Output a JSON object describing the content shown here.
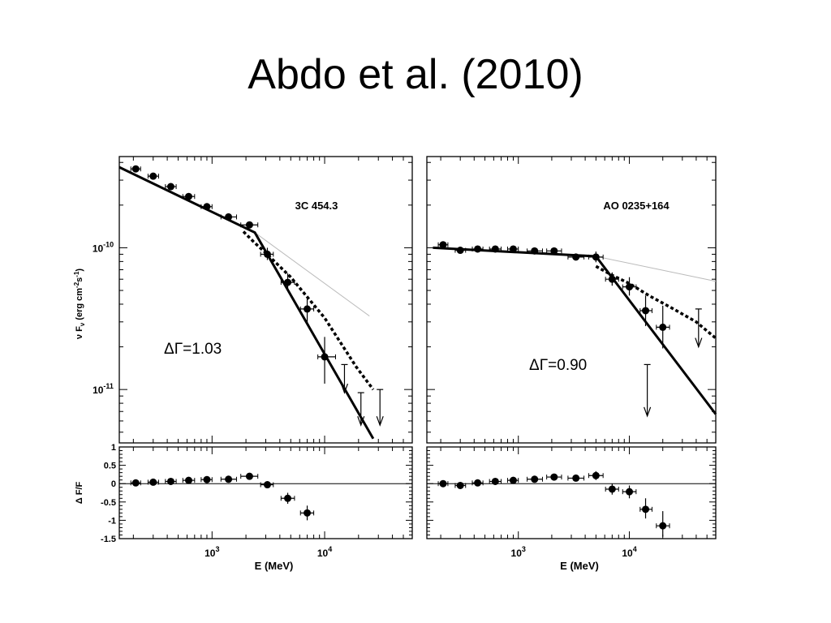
{
  "slide": {
    "title": "Abdo et al. (2010)"
  },
  "colors": {
    "data": "#000000",
    "reference_line": "#bbbbbb"
  },
  "chart_data": [
    {
      "type": "scatter",
      "panel": "upper-left",
      "annotation": "3C 454.3",
      "delta_label": "ΔΓ=1.03",
      "ylabel_parts": [
        "ν F",
        "ν",
        " (erg cm",
        "-2",
        "s",
        "-1",
        ")"
      ],
      "x_scale": "log",
      "y_scale": "log",
      "xlim": [
        150,
        60000
      ],
      "ylim": [
        4.2e-12,
        4.4e-10
      ],
      "y_ticks": [
        {
          "value": 1e-10,
          "base": "10",
          "exp": "-10"
        },
        {
          "value": 1e-11,
          "base": "10",
          "exp": "-11"
        }
      ],
      "points": [
        {
          "x": 210,
          "y": 3.6e-10,
          "xlo": 190,
          "xhi": 232
        },
        {
          "x": 300,
          "y": 3.2e-10,
          "xlo": 270,
          "xhi": 335
        },
        {
          "x": 430,
          "y": 2.7e-10,
          "xlo": 385,
          "xhi": 480
        },
        {
          "x": 620,
          "y": 2.3e-10,
          "xlo": 550,
          "xhi": 700
        },
        {
          "x": 900,
          "y": 1.95e-10,
          "xlo": 800,
          "xhi": 1000
        },
        {
          "x": 1400,
          "y": 1.65e-10,
          "xlo": 1200,
          "xhi": 1650
        },
        {
          "x": 2150,
          "y": 1.45e-10,
          "xlo": 1800,
          "xhi": 2550
        },
        {
          "x": 3100,
          "y": 9e-11,
          "xlo": 2700,
          "xhi": 3500,
          "ylo": 8.2e-11,
          "yhi": 1e-10
        },
        {
          "x": 4700,
          "y": 5.7e-11,
          "xlo": 4100,
          "xhi": 5400,
          "ylo": 5e-11,
          "yhi": 6.6e-11
        },
        {
          "x": 7000,
          "y": 3.7e-11,
          "xlo": 6100,
          "xhi": 8000,
          "ylo": 2.9e-11,
          "yhi": 4.5e-11
        },
        {
          "x": 10000,
          "y": 1.7e-11,
          "xlo": 8700,
          "xhi": 12500,
          "ylo": 1.1e-11,
          "yhi": 2.35e-11
        }
      ],
      "upper_limits": [
        {
          "x": 15000,
          "y": 1.5e-11,
          "to": 9.5e-12
        },
        {
          "x": 21000,
          "y": 9.5e-12,
          "to": 5.6e-12
        },
        {
          "x": 31000,
          "y": 1e-11,
          "to": 5.6e-12
        }
      ],
      "broken_power_law": [
        [
          150,
          3.7e-10
        ],
        [
          2400,
          1.28e-10
        ],
        [
          27000,
          4.5e-12
        ]
      ],
      "curved_model": [
        [
          1900,
          1.3e-10
        ],
        [
          2400,
          1.08e-10
        ],
        [
          3000,
          9.2e-11
        ],
        [
          5000,
          6.2e-11
        ],
        [
          10000,
          3.2e-11
        ],
        [
          19000,
          1.45e-11
        ],
        [
          27000,
          1e-11
        ]
      ],
      "reference_power_law": [
        [
          2400,
          1.28e-10
        ],
        [
          25000,
          3.3e-11
        ]
      ],
      "residuals": {
        "ylabel": "Δ F/F",
        "ylim": [
          -1.5,
          1
        ],
        "y_ticks": [
          {
            "value": 1,
            "label": "1"
          },
          {
            "value": 0.5,
            "label": "0.5"
          },
          {
            "value": 0,
            "label": "0"
          },
          {
            "value": -0.5,
            "label": "-0.5"
          },
          {
            "value": -1,
            "label": "-1"
          },
          {
            "value": -1.5,
            "label": "-1.5"
          }
        ],
        "points": [
          {
            "x": 210,
            "y": 0.02,
            "xlo": 190,
            "xhi": 232
          },
          {
            "x": 300,
            "y": 0.04,
            "xlo": 270,
            "xhi": 335
          },
          {
            "x": 430,
            "y": 0.06,
            "xlo": 385,
            "xhi": 480
          },
          {
            "x": 620,
            "y": 0.09,
            "xlo": 550,
            "xhi": 700
          },
          {
            "x": 900,
            "y": 0.11,
            "xlo": 800,
            "xhi": 1000
          },
          {
            "x": 1400,
            "y": 0.12,
            "xlo": 1200,
            "xhi": 1650
          },
          {
            "x": 2150,
            "y": 0.2,
            "xlo": 1800,
            "xhi": 2550,
            "ylo": 0.12,
            "yhi": 0.28
          },
          {
            "x": 3100,
            "y": -0.03,
            "xlo": 2700,
            "xhi": 3500
          },
          {
            "x": 4700,
            "y": -0.4,
            "xlo": 4100,
            "xhi": 5400,
            "ylo": -0.55,
            "yhi": -0.25
          },
          {
            "x": 7000,
            "y": -0.8,
            "xlo": 6100,
            "xhi": 8000,
            "ylo": -1.0,
            "yhi": -0.6
          }
        ]
      },
      "xlabel": "E (MeV)",
      "x_ticks": [
        {
          "value": 1000,
          "base": "10",
          "exp": "3"
        },
        {
          "value": 10000,
          "base": "10",
          "exp": "4"
        }
      ]
    },
    {
      "type": "scatter",
      "panel": "upper-right",
      "annotation": "AO 0235+164",
      "delta_label": "ΔΓ=0.90",
      "x_scale": "log",
      "y_scale": "log",
      "xlim": [
        150,
        60000
      ],
      "ylim": [
        4.2e-12,
        4.4e-10
      ],
      "points": [
        {
          "x": 210,
          "y": 1.05e-10,
          "xlo": 190,
          "xhi": 232
        },
        {
          "x": 300,
          "y": 9.6e-11,
          "xlo": 270,
          "xhi": 335
        },
        {
          "x": 430,
          "y": 9.8e-11,
          "xlo": 385,
          "xhi": 480
        },
        {
          "x": 620,
          "y": 9.8e-11,
          "xlo": 550,
          "xhi": 700
        },
        {
          "x": 900,
          "y": 9.8e-11,
          "xlo": 800,
          "xhi": 1000
        },
        {
          "x": 1400,
          "y": 9.5e-11,
          "xlo": 1200,
          "xhi": 1650
        },
        {
          "x": 2100,
          "y": 9.5e-11,
          "xlo": 1800,
          "xhi": 2450
        },
        {
          "x": 3300,
          "y": 8.6e-11,
          "xlo": 2800,
          "xhi": 3900
        },
        {
          "x": 5000,
          "y": 8.6e-11,
          "xlo": 4300,
          "xhi": 5800,
          "ylo": 7.9e-11,
          "yhi": 9.4e-11
        },
        {
          "x": 7000,
          "y": 6e-11,
          "xlo": 6100,
          "xhi": 8000,
          "ylo": 5.4e-11,
          "yhi": 6.7e-11
        },
        {
          "x": 10000,
          "y": 5.3e-11,
          "xlo": 8700,
          "xhi": 11500,
          "ylo": 4.6e-11,
          "yhi": 6.2e-11
        },
        {
          "x": 14000,
          "y": 3.6e-11,
          "xlo": 12500,
          "xhi": 16000,
          "ylo": 2.8e-11,
          "yhi": 4.6e-11
        },
        {
          "x": 20000,
          "y": 2.75e-11,
          "xlo": 17500,
          "xhi": 23000,
          "ylo": 1.95e-11,
          "yhi": 3.9e-11
        }
      ],
      "upper_limits": [
        {
          "x": 14500,
          "y": 1.5e-11,
          "to": 6.5e-12
        },
        {
          "x": 42000,
          "y": 3.7e-11,
          "to": 2e-11
        }
      ],
      "broken_power_law": [
        [
          170,
          1e-10
        ],
        [
          5000,
          8.7e-11
        ],
        [
          60000,
          6.7e-12
        ]
      ],
      "curved_model": [
        [
          5000,
          7.4e-11
        ],
        [
          7000,
          6.4e-11
        ],
        [
          10000,
          5.6e-11
        ],
        [
          15000,
          4.6e-11
        ],
        [
          25000,
          3.7e-11
        ],
        [
          40000,
          3e-11
        ],
        [
          60000,
          2.3e-11
        ]
      ],
      "reference_power_law": [
        [
          5000,
          8.7e-11
        ],
        [
          60000,
          5.8e-11
        ]
      ],
      "residuals": {
        "ylim": [
          -1.5,
          1
        ],
        "points": [
          {
            "x": 210,
            "y": 0.0,
            "xlo": 190,
            "xhi": 232
          },
          {
            "x": 300,
            "y": -0.05,
            "xlo": 270,
            "xhi": 335
          },
          {
            "x": 430,
            "y": 0.02,
            "xlo": 385,
            "xhi": 480
          },
          {
            "x": 620,
            "y": 0.06,
            "xlo": 550,
            "xhi": 700
          },
          {
            "x": 900,
            "y": 0.09,
            "xlo": 800,
            "xhi": 1000
          },
          {
            "x": 1400,
            "y": 0.12,
            "xlo": 1200,
            "xhi": 1650
          },
          {
            "x": 2100,
            "y": 0.18,
            "xlo": 1800,
            "xhi": 2450
          },
          {
            "x": 3300,
            "y": 0.15,
            "xlo": 2800,
            "xhi": 3900
          },
          {
            "x": 5000,
            "y": 0.22,
            "xlo": 4300,
            "xhi": 5800,
            "ylo": 0.1,
            "yhi": 0.34
          },
          {
            "x": 7000,
            "y": -0.15,
            "xlo": 6100,
            "xhi": 8000,
            "ylo": -0.3,
            "yhi": 0.0
          },
          {
            "x": 10000,
            "y": -0.22,
            "xlo": 8700,
            "xhi": 11500,
            "ylo": -0.4,
            "yhi": -0.05
          },
          {
            "x": 14000,
            "y": -0.7,
            "xlo": 12500,
            "xhi": 16000,
            "ylo": -0.95,
            "yhi": -0.4
          },
          {
            "x": 20000,
            "y": -1.15,
            "xlo": 17500,
            "xhi": 23000,
            "ylo": -1.45,
            "yhi": -0.75
          }
        ]
      },
      "xlabel": "E (MeV)",
      "x_ticks": [
        {
          "value": 1000,
          "base": "10",
          "exp": "3"
        },
        {
          "value": 10000,
          "base": "10",
          "exp": "4"
        }
      ]
    }
  ]
}
